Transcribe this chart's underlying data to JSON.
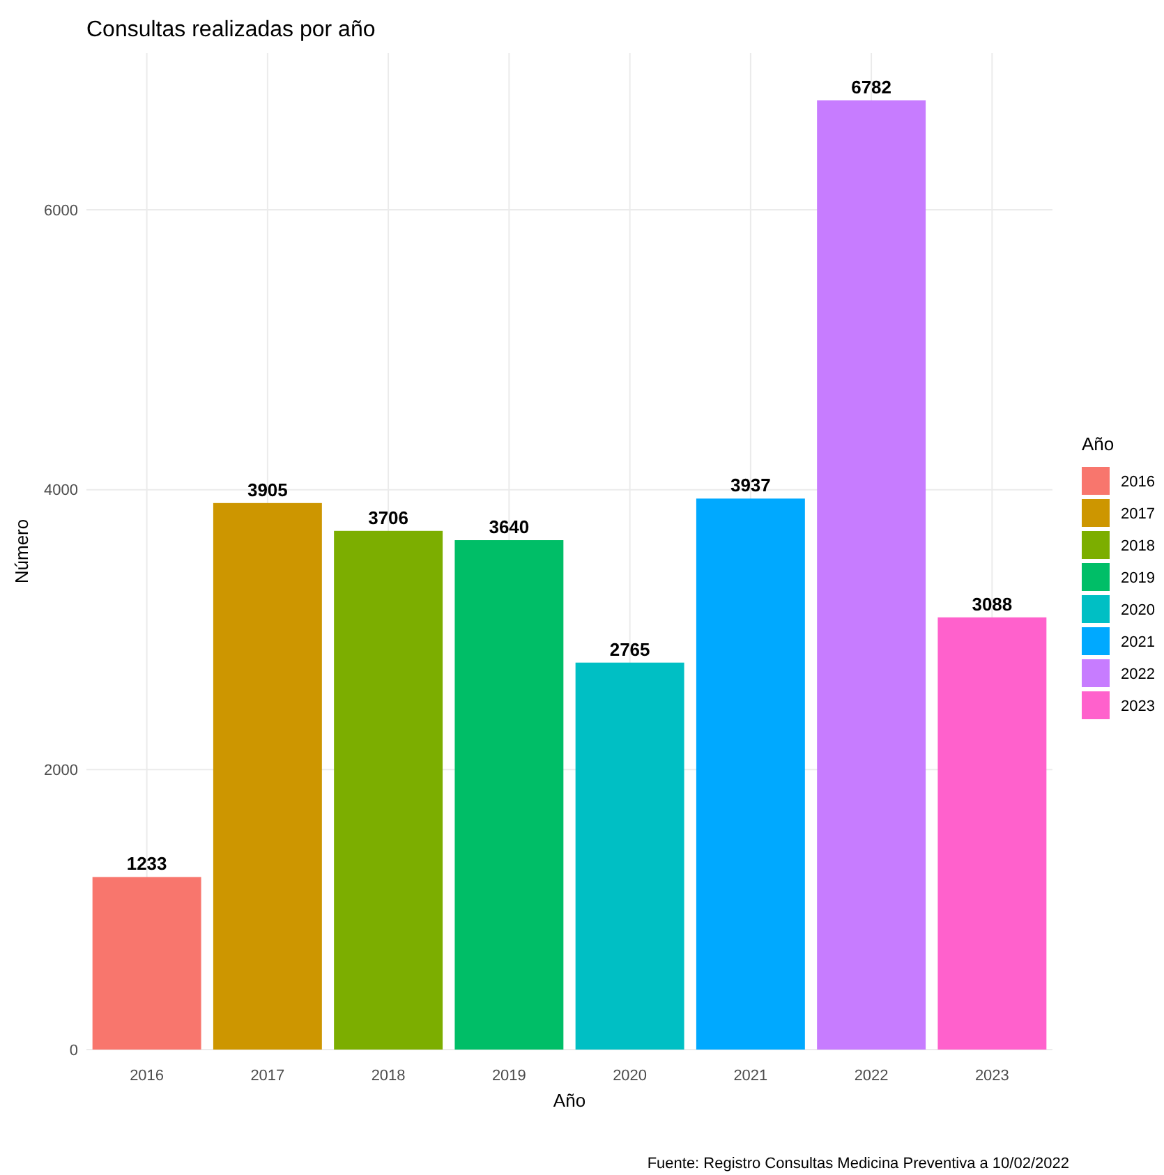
{
  "chart_data": {
    "type": "bar",
    "title": "Consultas realizadas por año",
    "xlabel": "Año",
    "ylabel": "Número",
    "legend_title": "Año",
    "categories": [
      "2016",
      "2017",
      "2018",
      "2019",
      "2020",
      "2021",
      "2022",
      "2023"
    ],
    "series": [
      {
        "name": "2016",
        "color": "#f8766d",
        "values": [
          1233,
          null,
          null,
          null,
          null,
          null,
          null,
          null
        ]
      },
      {
        "name": "2017",
        "color": "#cd9600",
        "values": [
          null,
          3905,
          null,
          null,
          null,
          null,
          null,
          null
        ]
      },
      {
        "name": "2018",
        "color": "#7cae00",
        "values": [
          null,
          null,
          3706,
          null,
          null,
          null,
          null,
          null
        ]
      },
      {
        "name": "2019",
        "color": "#00be67",
        "values": [
          null,
          null,
          null,
          3640,
          null,
          null,
          null,
          null
        ]
      },
      {
        "name": "2020",
        "color": "#00bfc4",
        "values": [
          null,
          null,
          null,
          null,
          2765,
          null,
          null,
          null
        ]
      },
      {
        "name": "2021",
        "color": "#00a9ff",
        "values": [
          null,
          null,
          null,
          null,
          null,
          3937,
          null,
          null
        ]
      },
      {
        "name": "2022",
        "color": "#c77cff",
        "values": [
          null,
          null,
          null,
          null,
          null,
          null,
          6782,
          null
        ]
      },
      {
        "name": "2023",
        "color": "#ff61cc",
        "values": [
          null,
          null,
          null,
          null,
          null,
          null,
          null,
          3088
        ]
      }
    ],
    "stacked": true,
    "ylim": [
      0,
      7121
    ],
    "yticks": [
      0,
      2000,
      4000,
      6000
    ],
    "grid": true,
    "legend": "right",
    "data_labels": true,
    "annotations": [
      "Fuente: Registro Consultas Medicina Preventiva a 10/02/2022"
    ]
  }
}
